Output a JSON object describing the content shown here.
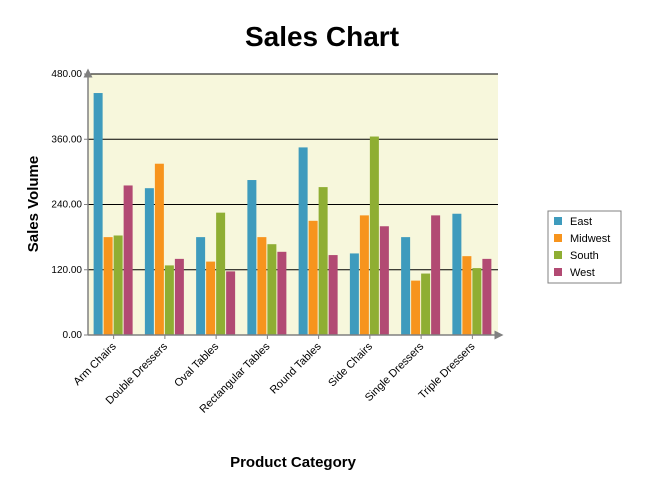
{
  "chart_data": {
    "type": "bar",
    "title": "Sales Chart",
    "xlabel": "Product Category",
    "ylabel": "Sales Volume",
    "ylim": [
      0,
      480
    ],
    "yticks": [
      "0.00",
      "120.00",
      "240.00",
      "360.00",
      "480.00"
    ],
    "ytick_values": [
      0,
      120,
      240,
      360,
      480
    ],
    "grid": true,
    "legend_position": "right",
    "categories": [
      "Arm Chairs",
      "Double Dressers",
      "Oval Tables",
      "Rectangular Tables",
      "Round Tables",
      "Side Chairs",
      "Single Dressers",
      "Triple Dressers"
    ],
    "series": [
      {
        "name": "East",
        "color": "#3e9bbd",
        "values": [
          445,
          270,
          180,
          285,
          345,
          150,
          180,
          223
        ]
      },
      {
        "name": "Midwest",
        "color": "#f7941d",
        "values": [
          180,
          315,
          135,
          180,
          210,
          220,
          100,
          145
        ]
      },
      {
        "name": "South",
        "color": "#8fae33",
        "values": [
          183,
          128,
          225,
          167,
          272,
          365,
          113,
          123
        ]
      },
      {
        "name": "West",
        "color": "#b24a73",
        "values": [
          275,
          140,
          117,
          153,
          147,
          200,
          220,
          140
        ]
      }
    ]
  },
  "colors": {
    "plot_background": "#f7f7dc",
    "grid_line": "#000000",
    "axis": "#808080"
  }
}
